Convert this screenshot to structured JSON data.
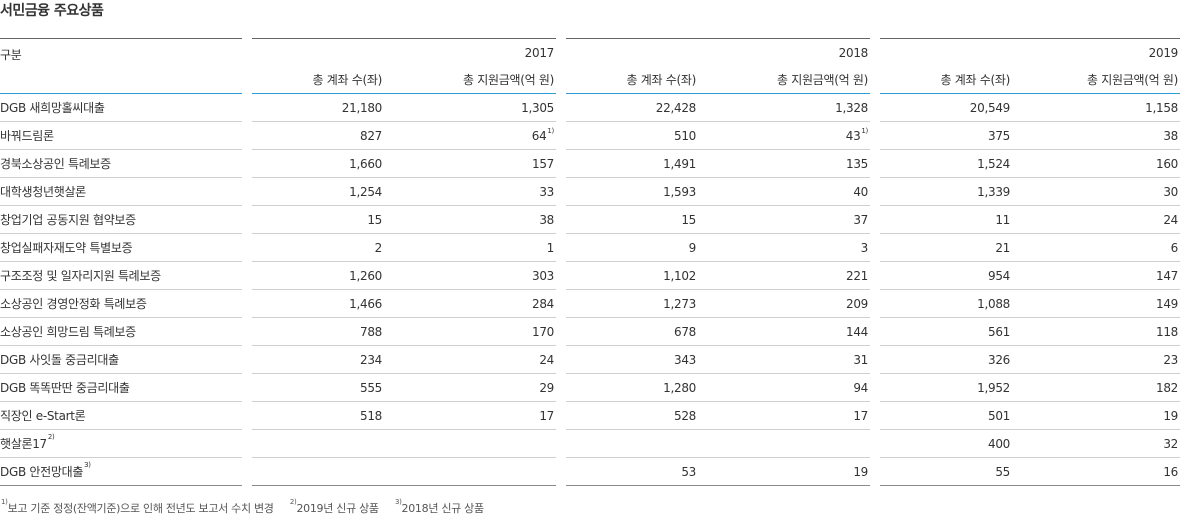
{
  "title": "서민금융 주요상품",
  "header": {
    "category_label": "구분",
    "years": [
      "2017",
      "2018",
      "2019"
    ],
    "sub_accounts": "총 계좌 수(좌)",
    "sub_amount": "총 지원금액(억 원)"
  },
  "rows": [
    {
      "name": "DGB 새희망홀씨대출",
      "v": [
        "21,180",
        "1,305",
        "22,428",
        "1,328",
        "20,549",
        "1,158"
      ]
    },
    {
      "name": "바꿔드림론",
      "v": [
        "827",
        "64",
        "510",
        "43",
        "375",
        "38"
      ],
      "sup": [
        "",
        "1)",
        "",
        "1)",
        "",
        ""
      ]
    },
    {
      "name": "경북소상공인 특례보증",
      "v": [
        "1,660",
        "157",
        "1,491",
        "135",
        "1,524",
        "160"
      ]
    },
    {
      "name": "대학생청년햇살론",
      "v": [
        "1,254",
        "33",
        "1,593",
        "40",
        "1,339",
        "30"
      ]
    },
    {
      "name": "창업기업 공동지원 협약보증",
      "v": [
        "15",
        "38",
        "15",
        "37",
        "11",
        "24"
      ]
    },
    {
      "name": "창업실패자재도약 특별보증",
      "v": [
        "2",
        "1",
        "9",
        "3",
        "21",
        "6"
      ]
    },
    {
      "name": "구조조정 및 일자리지원 특례보증",
      "v": [
        "1,260",
        "303",
        "1,102",
        "221",
        "954",
        "147"
      ]
    },
    {
      "name": "소상공인 경영안정화 특례보증",
      "v": [
        "1,466",
        "284",
        "1,273",
        "209",
        "1,088",
        "149"
      ]
    },
    {
      "name": "소상공인 희망드림 특례보증",
      "v": [
        "788",
        "170",
        "678",
        "144",
        "561",
        "118"
      ]
    },
    {
      "name": "DGB 사잇돌 중금리대출",
      "v": [
        "234",
        "24",
        "343",
        "31",
        "326",
        "23"
      ]
    },
    {
      "name": "DGB 똑똑딴딴 중금리대출",
      "v": [
        "555",
        "29",
        "1,280",
        "94",
        "1,952",
        "182"
      ]
    },
    {
      "name": "직장인 e-Start론",
      "v": [
        "518",
        "17",
        "528",
        "17",
        "501",
        "19"
      ]
    },
    {
      "name": "햇살론17",
      "name_sup": "2)",
      "v": [
        "",
        "",
        "",
        "",
        "400",
        "32"
      ]
    },
    {
      "name": "DGB 안전망대출",
      "name_sup": "3)",
      "v": [
        "",
        "",
        "53",
        "19",
        "55",
        "16"
      ]
    }
  ],
  "notes": [
    {
      "sup": "1)",
      "text": "보고 기준 정정(잔액기준)으로 인해 전년도 보고서 수치 변경"
    },
    {
      "sup": "2)",
      "text": "2019년 신규 상품"
    },
    {
      "sup": "3)",
      "text": "2018년 신규 상품"
    }
  ]
}
